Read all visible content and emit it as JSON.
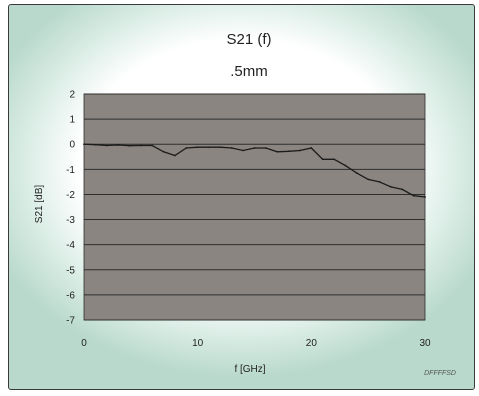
{
  "chart_data": {
    "type": "line",
    "title": "S21 (f)",
    "subtitle": ".5mm",
    "xlabel": "f [GHz]",
    "ylabel": "S21 [dB]",
    "xlim": [
      0,
      30
    ],
    "ylim": [
      -7,
      2
    ],
    "xticks": [
      "0",
      "10",
      "20",
      "30"
    ],
    "yticks": [
      "2",
      "1",
      "0",
      "-1",
      "-2",
      "-3",
      "-4",
      "-5",
      "-6",
      "-7"
    ],
    "grid": true,
    "footnote": "DFFFFSD",
    "colors": {
      "plot_bg": "#8a8580",
      "grid": "#2e2e2e",
      "line": "#1c1c1c"
    },
    "series": [
      {
        "x": [
          0,
          1,
          2,
          3,
          4,
          5,
          6,
          7,
          8,
          9,
          10,
          11,
          12,
          13,
          14,
          15,
          16,
          17,
          18,
          19,
          20,
          21,
          22,
          23,
          24,
          25,
          26,
          27,
          28,
          29,
          30
        ],
        "y": [
          0,
          -0.02,
          -0.05,
          -0.03,
          -0.06,
          -0.05,
          -0.05,
          -0.3,
          -0.45,
          -0.15,
          -0.12,
          -0.12,
          -0.12,
          -0.15,
          -0.25,
          -0.15,
          -0.15,
          -0.3,
          -0.28,
          -0.25,
          -0.15,
          -0.6,
          -0.6,
          -0.85,
          -1.15,
          -1.4,
          -1.5,
          -1.7,
          -1.8,
          -2.05,
          -2.1
        ]
      }
    ]
  }
}
